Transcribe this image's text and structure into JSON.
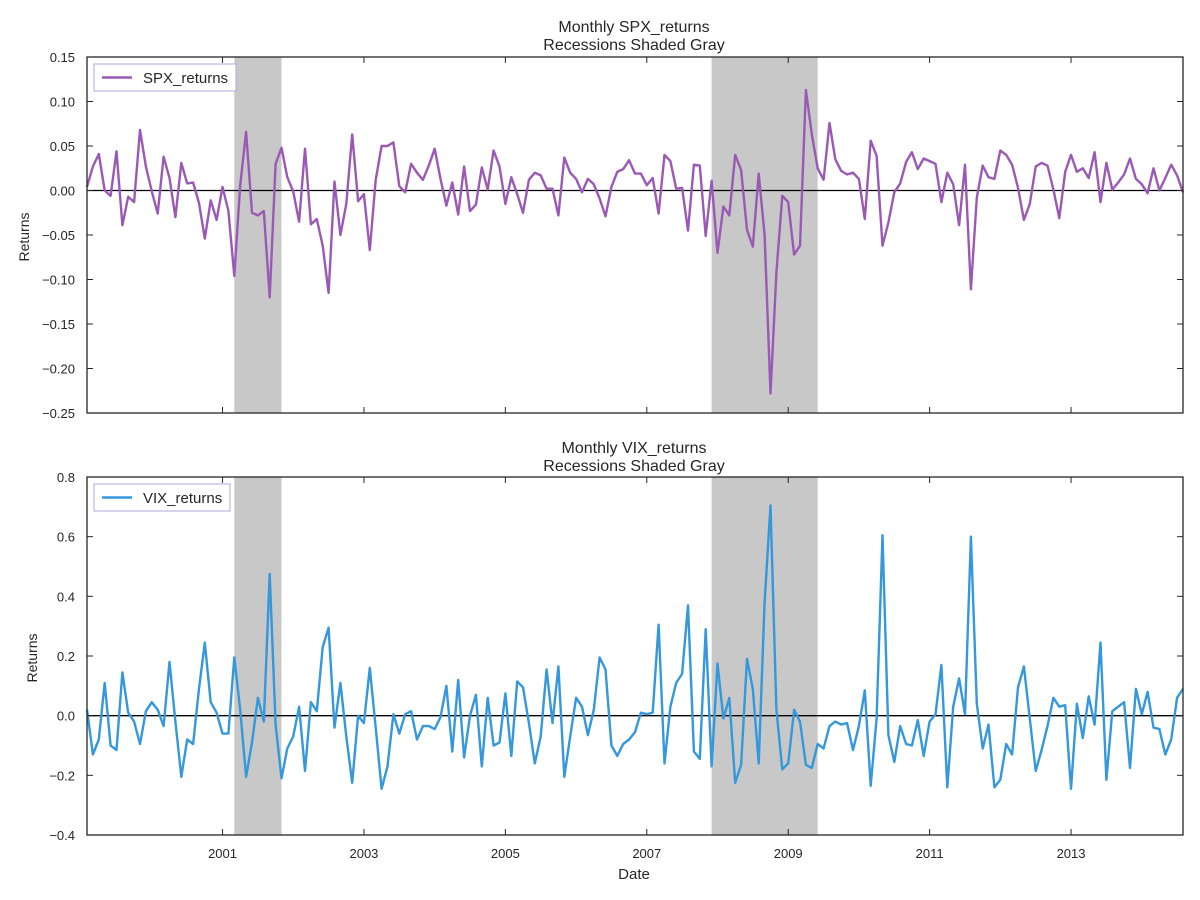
{
  "figure": {
    "xlabel": "Date",
    "x_ticks": [
      "2001",
      "2003",
      "2005",
      "2007",
      "2009",
      "2011",
      "2013"
    ],
    "recession_color": "#c8c8c8",
    "zero_line_color": "#000000"
  },
  "chart_data": [
    {
      "type": "line",
      "title_line1": "Monthly SPX_returns",
      "title_line2": "Recessions Shaded Gray",
      "ylabel": "Returns",
      "legend": "SPX_returns",
      "legend_placement": "top-left",
      "color": "#9b59b6",
      "ylim": [
        -0.25,
        0.15
      ],
      "y_ticks": [
        "0.15",
        "0.10",
        "0.05",
        "0.00",
        "−0.05",
        "−0.10",
        "−0.15",
        "−0.20",
        "−0.25"
      ],
      "y_tick_values": [
        0.15,
        0.1,
        0.05,
        0.0,
        -0.05,
        -0.1,
        -0.15,
        -0.2,
        -0.25
      ],
      "x_start": "1999-02",
      "x_end": "2014-08",
      "recessions": [
        [
          "2001-03",
          "2001-11"
        ],
        [
          "2007-12",
          "2009-06"
        ]
      ],
      "series": [
        {
          "name": "SPX_returns",
          "values": [
            0.004,
            0.027,
            0.041,
            0.0,
            -0.006,
            0.044,
            -0.039,
            -0.007,
            -0.013,
            0.068,
            0.027,
            -0.001,
            -0.026,
            0.038,
            0.014,
            -0.03,
            0.031,
            0.008,
            0.009,
            -0.014,
            -0.054,
            -0.011,
            -0.033,
            0.004,
            -0.023,
            -0.096,
            0.006,
            0.066,
            -0.025,
            -0.028,
            -0.023,
            -0.12,
            0.03,
            0.048,
            0.015,
            -0.001,
            -0.035,
            0.047,
            -0.038,
            -0.032,
            -0.062,
            -0.115,
            0.01,
            -0.05,
            -0.015,
            0.063,
            -0.012,
            -0.004,
            -0.067,
            0.012,
            0.05,
            0.05,
            0.054,
            0.005,
            -0.002,
            0.03,
            0.02,
            0.012,
            0.028,
            0.047,
            0.013,
            -0.017,
            0.009,
            -0.027,
            0.027,
            -0.023,
            -0.016,
            0.026,
            0.001,
            0.045,
            0.027,
            -0.015,
            0.015,
            -0.004,
            -0.025,
            0.012,
            0.02,
            0.017,
            0.002,
            0.002,
            -0.028,
            0.037,
            0.02,
            0.013,
            -0.002,
            0.013,
            0.007,
            -0.009,
            -0.029,
            0.004,
            0.021,
            0.024,
            0.034,
            0.019,
            0.019,
            0.006,
            0.014,
            -0.026,
            0.04,
            0.033,
            0.002,
            0.003,
            -0.045,
            0.029,
            0.028,
            -0.051,
            0.011,
            -0.07,
            -0.018,
            -0.028,
            0.04,
            0.023,
            -0.044,
            -0.063,
            0.019,
            -0.05,
            -0.228,
            -0.092,
            -0.006,
            -0.013,
            -0.072,
            -0.062,
            0.113,
            0.063,
            0.025,
            0.012,
            0.076,
            0.035,
            0.022,
            0.018,
            0.02,
            0.013,
            -0.032,
            0.056,
            0.039,
            -0.062,
            -0.036,
            -0.002,
            0.008,
            0.032,
            0.043,
            0.024,
            0.036,
            0.033,
            0.03,
            -0.013,
            0.02,
            0.007,
            -0.039,
            0.029,
            -0.111,
            -0.008,
            0.028,
            0.015,
            0.013,
            0.045,
            0.04,
            0.029,
            0.003,
            -0.033,
            -0.015,
            0.027,
            0.031,
            0.028,
            0.001,
            -0.031,
            0.021,
            0.04,
            0.021,
            0.025,
            0.014,
            0.043,
            -0.013,
            0.031,
            0.001,
            0.009,
            0.018,
            0.036,
            0.013,
            0.007,
            -0.003,
            0.025,
            0.0,
            0.014,
            0.029,
            0.017,
            -0.002
          ]
        }
      ]
    },
    {
      "type": "line",
      "title_line1": "Monthly VIX_returns",
      "title_line2": "Recessions Shaded Gray",
      "ylabel": "Returns",
      "legend": "VIX_returns",
      "legend_placement": "top-left",
      "color": "#3498db",
      "ylim": [
        -0.4,
        0.8
      ],
      "y_ticks": [
        "0.8",
        "0.6",
        "0.4",
        "0.2",
        "0.0",
        "−0.2",
        "−0.4"
      ],
      "y_tick_values": [
        0.8,
        0.6,
        0.4,
        0.2,
        0.0,
        -0.2,
        -0.4
      ],
      "x_start": "1999-02",
      "x_end": "2014-08",
      "recessions": [
        [
          "2001-03",
          "2001-11"
        ],
        [
          "2007-12",
          "2009-06"
        ]
      ],
      "series": [
        {
          "name": "VIX_returns",
          "values": [
            0.02,
            -0.13,
            -0.08,
            0.11,
            -0.1,
            -0.115,
            0.145,
            0.01,
            -0.02,
            -0.095,
            0.015,
            0.045,
            0.02,
            -0.035,
            0.18,
            -0.02,
            -0.205,
            -0.08,
            -0.095,
            0.09,
            0.245,
            0.045,
            0.01,
            -0.06,
            -0.06,
            0.195,
            0.02,
            -0.205,
            -0.09,
            0.06,
            -0.02,
            0.475,
            -0.03,
            -0.21,
            -0.11,
            -0.07,
            0.03,
            -0.185,
            0.045,
            0.015,
            0.23,
            0.295,
            -0.04,
            0.11,
            -0.07,
            -0.225,
            0.0,
            -0.025,
            0.16,
            -0.04,
            -0.245,
            -0.17,
            0.005,
            -0.06,
            0.005,
            0.015,
            -0.08,
            -0.035,
            -0.035,
            -0.045,
            -0.005,
            0.1,
            -0.12,
            0.12,
            -0.14,
            0.0,
            0.07,
            -0.17,
            0.06,
            -0.1,
            -0.09,
            0.075,
            -0.135,
            0.115,
            0.095,
            -0.025,
            -0.16,
            -0.07,
            0.155,
            -0.025,
            0.165,
            -0.205,
            -0.07,
            0.06,
            0.03,
            -0.065,
            0.02,
            0.195,
            0.155,
            -0.1,
            -0.135,
            -0.095,
            -0.08,
            -0.055,
            0.01,
            0.005,
            0.01,
            0.305,
            -0.16,
            0.03,
            0.11,
            0.14,
            0.37,
            -0.12,
            -0.145,
            0.29,
            -0.17,
            0.175,
            -0.01,
            0.06,
            -0.225,
            -0.165,
            0.19,
            0.09,
            -0.16,
            0.38,
            0.705,
            0.02,
            -0.18,
            -0.16,
            0.02,
            -0.02,
            -0.165,
            -0.175,
            -0.095,
            -0.11,
            -0.035,
            -0.02,
            -0.03,
            -0.025,
            -0.115,
            -0.035,
            0.085,
            -0.235,
            -0.01,
            0.605,
            -0.065,
            -0.155,
            -0.035,
            -0.095,
            -0.1,
            -0.015,
            -0.135,
            -0.02,
            0.005,
            0.17,
            -0.24,
            0.03,
            0.125,
            0.005,
            0.6,
            0.04,
            -0.11,
            -0.03,
            -0.24,
            -0.215,
            -0.095,
            -0.13,
            0.095,
            0.165,
            -0.01,
            -0.185,
            -0.115,
            -0.035,
            0.06,
            0.03,
            0.035,
            -0.245,
            0.04,
            -0.075,
            0.065,
            -0.03,
            0.245,
            -0.215,
            0.015,
            0.03,
            0.045,
            -0.175,
            0.09,
            0.005,
            0.08,
            -0.04,
            -0.045,
            -0.13,
            -0.08,
            0.06,
            0.09
          ]
        }
      ]
    }
  ]
}
